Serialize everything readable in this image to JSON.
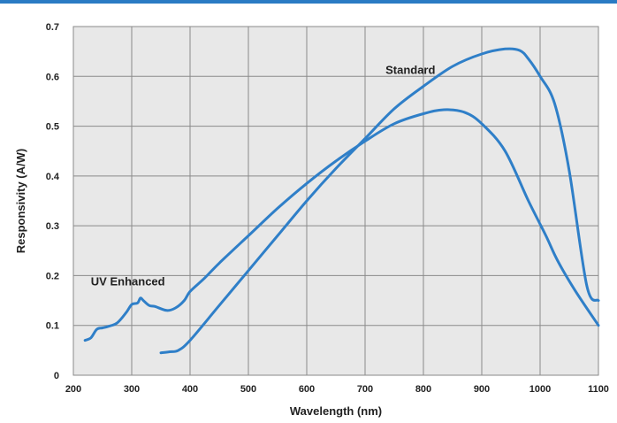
{
  "colors": {
    "rule": "#2a7bc4",
    "line": "#2f7fc8",
    "plot_bg": "#e8e8e8",
    "grid": "#8a8a8a"
  },
  "chart_data": {
    "type": "line",
    "title": "",
    "xlabel": "Wavelength (nm)",
    "ylabel": "Responsivity (A/W)",
    "xlim": [
      200,
      1100
    ],
    "ylim": [
      0,
      0.7
    ],
    "xticks": [
      "200",
      "300",
      "400",
      "500",
      "600",
      "700",
      "800",
      "900",
      "1000",
      "1100"
    ],
    "yticks": [
      "0",
      "0.1",
      "0.2",
      "0.3",
      "0.4",
      "0.5",
      "0.6",
      "0.7"
    ],
    "grid": true,
    "series": [
      {
        "name": "Standard",
        "x": [
          350,
          365,
          380,
          400,
          450,
          500,
          550,
          600,
          650,
          700,
          750,
          800,
          850,
          900,
          940,
          965,
          980,
          1000,
          1025,
          1050,
          1080,
          1100
        ],
        "y": [
          0.045,
          0.047,
          0.05,
          0.07,
          0.14,
          0.21,
          0.28,
          0.35,
          0.415,
          0.475,
          0.535,
          0.58,
          0.62,
          0.645,
          0.655,
          0.652,
          0.635,
          0.6,
          0.545,
          0.41,
          0.18,
          0.15
        ]
      },
      {
        "name": "UV Enhanced",
        "x": [
          220,
          230,
          240,
          250,
          260,
          275,
          290,
          300,
          310,
          315,
          320,
          330,
          340,
          360,
          375,
          390,
          400,
          425,
          450,
          500,
          550,
          600,
          650,
          700,
          750,
          800,
          835,
          870,
          900,
          940,
          980,
          1010,
          1030,
          1060,
          1100
        ],
        "y": [
          0.07,
          0.075,
          0.092,
          0.095,
          0.098,
          0.105,
          0.125,
          0.142,
          0.145,
          0.155,
          0.15,
          0.14,
          0.138,
          0.13,
          0.135,
          0.15,
          0.168,
          0.195,
          0.225,
          0.28,
          0.335,
          0.385,
          0.43,
          0.47,
          0.505,
          0.525,
          0.533,
          0.528,
          0.505,
          0.45,
          0.35,
          0.28,
          0.23,
          0.17,
          0.1
        ]
      }
    ],
    "labels": [
      {
        "text": "Standard",
        "x": 735,
        "y": 0.605
      },
      {
        "text": "UV Enhanced",
        "x": 230,
        "y": 0.18
      }
    ]
  }
}
